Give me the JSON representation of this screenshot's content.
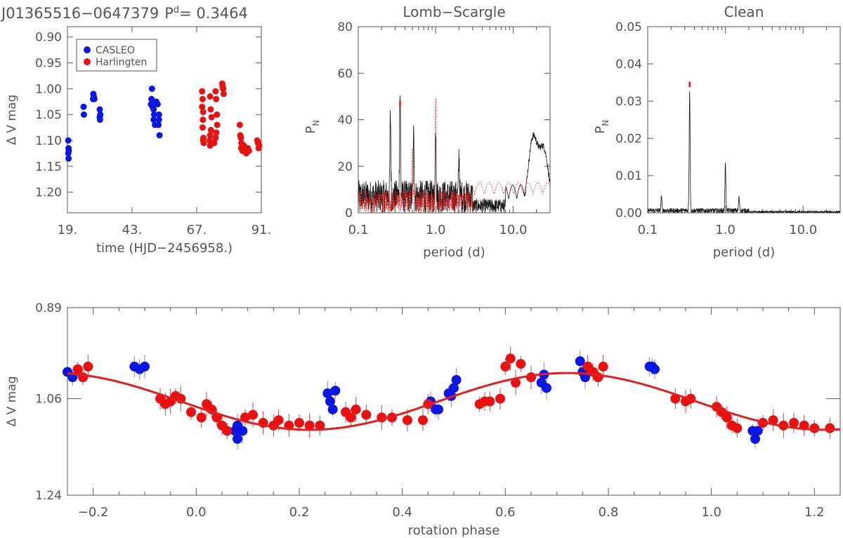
{
  "figure": {
    "star_id": "J01365516−0647379",
    "period_label": "P",
    "period_sup": "d",
    "period_value": "= 0.3464"
  },
  "colors": {
    "casleo": "#0a17e0",
    "harlingten": "#e81010",
    "curve_black": "#111111",
    "curve_red": "#e02020",
    "axis": "#555555"
  },
  "chart_data": [
    {
      "id": "timeseries",
      "type": "scatter",
      "title": "",
      "xlabel": "time (HJD−2456958.)",
      "ylabel": "Δ V mag",
      "xlim": [
        19,
        91
      ],
      "ylim": [
        1.24,
        0.88
      ],
      "x_ticks": [
        19,
        43,
        67,
        91
      ],
      "x_tick_labels": [
        "19.",
        "43.",
        "67.",
        "91."
      ],
      "y_ticks": [
        0.9,
        0.95,
        1.0,
        1.05,
        1.1,
        1.15,
        1.2
      ],
      "y_tick_labels": [
        "0.90",
        "0.95",
        "1.00",
        "1.05",
        "1.10",
        "1.15",
        "1.20"
      ],
      "legend": {
        "position": "top-left",
        "entries": [
          "CASLEO",
          "Harlingten"
        ]
      },
      "series": [
        {
          "name": "CASLEO",
          "points": [
            [
              19.3,
              1.1
            ],
            [
              19.4,
              1.115
            ],
            [
              19.3,
              1.125
            ],
            [
              19.5,
              1.12
            ],
            [
              19.4,
              1.135
            ],
            [
              25.0,
              1.035
            ],
            [
              25.1,
              1.05
            ],
            [
              28.5,
              1.02
            ],
            [
              28.8,
              1.015
            ],
            [
              29.0,
              1.02
            ],
            [
              28.6,
              1.01
            ],
            [
              31.0,
              1.04
            ],
            [
              31.2,
              1.05
            ],
            [
              31.1,
              1.06
            ],
            [
              31.0,
              1.055
            ],
            [
              50.0,
              1.03
            ],
            [
              50.4,
              1.0
            ],
            [
              50.2,
              1.02
            ],
            [
              50.6,
              1.035
            ],
            [
              51.0,
              1.04
            ],
            [
              51.2,
              1.05
            ],
            [
              51.0,
              1.06
            ],
            [
              52.0,
              1.025
            ],
            [
              52.5,
              1.03
            ],
            [
              51.5,
              1.07
            ],
            [
              52.8,
              1.07
            ],
            [
              53.0,
              1.05
            ],
            [
              53.2,
              1.09
            ],
            [
              53.0,
              1.06
            ]
          ]
        },
        {
          "name": "Harlingten",
          "points": [
            [
              69.0,
              1.005
            ],
            [
              69.2,
              1.02
            ],
            [
              69.0,
              1.035
            ],
            [
              69.4,
              1.045
            ],
            [
              69.3,
              1.06
            ],
            [
              69.2,
              1.075
            ],
            [
              69.4,
              1.1
            ],
            [
              69.6,
              1.105
            ],
            [
              69.5,
              1.095
            ],
            [
              72.0,
              1.015
            ],
            [
              72.2,
              1.04
            ],
            [
              72.5,
              1.055
            ],
            [
              72.3,
              1.08
            ],
            [
              72.0,
              1.09
            ],
            [
              71.8,
              1.1
            ],
            [
              72.0,
              1.11
            ],
            [
              74.0,
              1.005
            ],
            [
              74.2,
              1.02
            ],
            [
              74.5,
              1.05
            ],
            [
              74.6,
              1.07
            ],
            [
              74.3,
              1.085
            ],
            [
              74.0,
              1.095
            ],
            [
              73.5,
              1.105
            ],
            [
              76.5,
              0.99
            ],
            [
              76.8,
              1.0
            ],
            [
              77.0,
              1.01
            ],
            [
              76.6,
              0.995
            ],
            [
              83.0,
              1.07
            ],
            [
              83.2,
              1.09
            ],
            [
              83.4,
              1.095
            ],
            [
              83.6,
              1.105
            ],
            [
              83.5,
              1.115
            ],
            [
              84.0,
              1.12
            ],
            [
              84.5,
              1.11
            ],
            [
              85.0,
              1.115
            ],
            [
              85.4,
              1.125
            ],
            [
              85.8,
              1.12
            ],
            [
              86.0,
              1.115
            ],
            [
              86.4,
              1.12
            ],
            [
              89.5,
              1.1
            ],
            [
              89.8,
              1.105
            ],
            [
              90.0,
              1.115
            ],
            [
              90.2,
              1.11
            ]
          ]
        }
      ]
    },
    {
      "id": "lomb_scargle",
      "type": "line",
      "title": "Lomb−Scargle",
      "xlabel": "period (d)",
      "ylabel": "P",
      "ylabel_sub": "N",
      "xscale": "log",
      "xlim": [
        0.1,
        30
      ],
      "ylim": [
        0,
        80
      ],
      "x_ticks": [
        0.1,
        1.0,
        10.0
      ],
      "x_tick_labels": [
        "0.1",
        "1.0",
        "10.0"
      ],
      "y_ticks": [
        0,
        20,
        40,
        60,
        80
      ],
      "y_tick_labels": [
        "0",
        "20",
        "40",
        "60",
        "80"
      ],
      "marker_period": 0.3464,
      "marker_level": 47,
      "peaks": [
        {
          "period": 0.3464,
          "power": 44
        },
        {
          "period": 1.0,
          "power": 30
        },
        {
          "period": 0.26,
          "power": 35
        },
        {
          "period": 0.52,
          "power": 27
        },
        {
          "period": 2.0,
          "power": 18
        },
        {
          "period": 18.0,
          "power": 30
        },
        {
          "period": 25.0,
          "power": 25
        }
      ],
      "series": [
        {
          "name": "data",
          "style": "solid",
          "color": "#111111"
        },
        {
          "name": "window",
          "style": "dotted",
          "color": "#e02020",
          "peaks": [
            {
              "period": 1.0,
              "power": 43
            },
            {
              "period": 0.5,
              "power": 20
            }
          ]
        }
      ]
    },
    {
      "id": "clean",
      "type": "line",
      "title": "Clean",
      "xlabel": "period (d)",
      "ylabel": "P",
      "ylabel_sub": "N",
      "xscale": "log",
      "xlim": [
        0.1,
        30
      ],
      "ylim": [
        0,
        0.05
      ],
      "x_ticks": [
        0.1,
        1.0,
        10.0
      ],
      "x_tick_labels": [
        "0.1",
        "1.0",
        "10.0"
      ],
      "y_ticks": [
        0.0,
        0.01,
        0.02,
        0.03,
        0.04,
        0.05
      ],
      "y_tick_labels": [
        "0.00",
        "0.01",
        "0.02",
        "0.03",
        "0.04",
        "0.05"
      ],
      "marker_period": 0.3464,
      "marker_level": 0.0345,
      "peaks": [
        {
          "period": 0.3464,
          "power": 0.032
        },
        {
          "period": 1.0,
          "power": 0.0125
        },
        {
          "period": 1.5,
          "power": 0.0035
        },
        {
          "period": 0.15,
          "power": 0.004
        }
      ]
    },
    {
      "id": "phase",
      "type": "scatter",
      "title": "",
      "xlabel": "rotation phase",
      "ylabel": "Δ V mag",
      "xlim": [
        -0.25,
        1.25
      ],
      "ylim": [
        1.24,
        0.89
      ],
      "x_ticks": [
        -0.2,
        0.0,
        0.2,
        0.4,
        0.6,
        0.8,
        1.0,
        1.2
      ],
      "x_tick_labels": [
        "−0.2",
        "0.0",
        "0.2",
        "0.4",
        "0.6",
        "0.8",
        "1.0",
        "1.2"
      ],
      "y_ticks": [
        0.89,
        1.06,
        1.24
      ],
      "y_tick_labels": [
        "0.89",
        "1.06",
        "1.24"
      ],
      "fit": {
        "model": "sinusoid",
        "mean": 1.065,
        "amplitude": 0.053,
        "phase_of_min_mag": 0.72
      },
      "series": [
        {
          "name": "CASLEO",
          "points": [
            [
              -0.25,
              1.01
            ],
            [
              -0.24,
              1.02
            ],
            [
              -0.12,
              1.0
            ],
            [
              -0.11,
              1.005
            ],
            [
              -0.1,
              1.0
            ],
            [
              0.075,
              1.12
            ],
            [
              0.08,
              1.135
            ],
            [
              0.09,
              1.12
            ],
            [
              0.08,
              1.11
            ],
            [
              0.255,
              1.05
            ],
            [
              0.26,
              1.065
            ],
            [
              0.265,
              1.08
            ],
            [
              0.27,
              1.045
            ],
            [
              0.455,
              1.065
            ],
            [
              0.465,
              1.08
            ],
            [
              0.47,
              1.08
            ],
            [
              0.49,
              1.05
            ],
            [
              0.5,
              1.04
            ],
            [
              0.505,
              1.025
            ],
            [
              0.495,
              1.055
            ],
            [
              0.67,
              1.03
            ],
            [
              0.675,
              1.015
            ],
            [
              0.68,
              1.04
            ],
            [
              0.745,
              0.99
            ],
            [
              0.75,
              1.01
            ],
            [
              0.755,
              1.02
            ],
            [
              0.88,
              1.0
            ],
            [
              0.89,
              1.005
            ],
            [
              0.885,
              1.0
            ],
            [
              1.08,
              1.12
            ],
            [
              1.085,
              1.135
            ],
            [
              1.09,
              1.12
            ]
          ]
        },
        {
          "name": "Harlingten",
          "points": [
            [
              -0.23,
              1.005
            ],
            [
              -0.22,
              1.02
            ],
            [
              -0.21,
              1.0
            ],
            [
              -0.07,
              1.06
            ],
            [
              -0.06,
              1.07
            ],
            [
              -0.05,
              1.065
            ],
            [
              -0.04,
              1.055
            ],
            [
              -0.03,
              1.06
            ],
            [
              -0.01,
              1.085
            ],
            [
              0.01,
              1.095
            ],
            [
              0.02,
              1.07
            ],
            [
              0.03,
              1.08
            ],
            [
              0.04,
              1.095
            ],
            [
              0.05,
              1.11
            ],
            [
              0.06,
              1.12
            ],
            [
              0.095,
              1.095
            ],
            [
              0.11,
              1.09
            ],
            [
              0.13,
              1.105
            ],
            [
              0.15,
              1.11
            ],
            [
              0.16,
              1.1
            ],
            [
              0.18,
              1.11
            ],
            [
              0.2,
              1.105
            ],
            [
              0.22,
              1.11
            ],
            [
              0.24,
              1.11
            ],
            [
              0.29,
              1.085
            ],
            [
              0.3,
              1.095
            ],
            [
              0.31,
              1.08
            ],
            [
              0.33,
              1.09
            ],
            [
              0.36,
              1.095
            ],
            [
              0.38,
              1.095
            ],
            [
              0.41,
              1.1
            ],
            [
              0.44,
              1.1
            ],
            [
              0.45,
              1.07
            ],
            [
              0.55,
              1.07
            ],
            [
              0.56,
              1.065
            ],
            [
              0.57,
              1.065
            ],
            [
              0.59,
              1.06
            ],
            [
              0.6,
              1.0
            ],
            [
              0.61,
              0.985
            ],
            [
              0.62,
              1.03
            ],
            [
              0.63,
              0.995
            ],
            [
              0.65,
              1.02
            ],
            [
              0.76,
              1.0
            ],
            [
              0.77,
              1.01
            ],
            [
              0.78,
              1.02
            ],
            [
              0.79,
              1.0
            ],
            [
              0.93,
              1.06
            ],
            [
              0.95,
              1.065
            ],
            [
              0.96,
              1.06
            ],
            [
              1.01,
              1.075
            ],
            [
              1.02,
              1.085
            ],
            [
              1.03,
              1.095
            ],
            [
              1.04,
              1.11
            ],
            [
              1.05,
              1.115
            ],
            [
              1.1,
              1.105
            ],
            [
              1.12,
              1.1
            ],
            [
              1.14,
              1.11
            ],
            [
              1.16,
              1.105
            ],
            [
              1.18,
              1.11
            ],
            [
              1.2,
              1.115
            ],
            [
              1.23,
              1.115
            ]
          ]
        }
      ]
    }
  ]
}
